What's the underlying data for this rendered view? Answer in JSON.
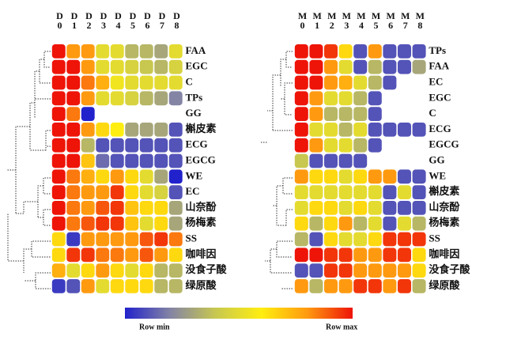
{
  "chart_data": [
    {
      "type": "heatmap",
      "categories": [
        "D0",
        "D1",
        "D2",
        "D3",
        "D4",
        "D5",
        "D6",
        "D7",
        "D8"
      ],
      "rows": [
        "FAA",
        "EGC",
        "C",
        "TPs",
        "GG",
        "槲皮素",
        "ECG",
        "EGCG",
        "WE",
        "EC",
        "山奈酚",
        "杨梅素",
        "SS",
        "咖啡因",
        "没食子酸",
        "绿原酸"
      ],
      "values": [
        [
          1,
          0.8,
          0.8,
          0.5,
          0.5,
          0.35,
          0.35,
          0.3,
          0.5
        ],
        [
          1,
          1,
          0.8,
          0.5,
          0.5,
          0.45,
          0.4,
          0.35,
          0.45
        ],
        [
          1,
          1,
          0.85,
          0.75,
          0.55,
          0.5,
          0.5,
          0.5,
          0.5
        ],
        [
          1,
          1,
          0.8,
          0.5,
          0.5,
          0.45,
          0.35,
          0.3,
          0.2
        ],
        [
          1,
          0.85,
          0,
          null,
          null,
          null,
          null,
          null,
          null
        ],
        [
          1,
          1,
          0.8,
          0.65,
          0.6,
          0.3,
          0.3,
          0.3,
          0.1
        ],
        [
          1,
          1,
          0.35,
          0.1,
          0.1,
          0.1,
          0.1,
          0.1,
          0.1
        ],
        [
          1,
          1,
          0.7,
          0.15,
          0.1,
          0.1,
          0.1,
          0.1,
          0.1
        ],
        [
          1,
          0.85,
          0.75,
          0.65,
          0.8,
          0.65,
          0.5,
          0.3,
          0
        ],
        [
          1,
          0.85,
          0.8,
          0.8,
          0.95,
          0.65,
          0.5,
          0.45,
          0.1
        ],
        [
          1,
          0.85,
          0.8,
          0.9,
          0.95,
          0.7,
          0.65,
          0.65,
          0.3
        ],
        [
          1,
          0.85,
          0.9,
          0.95,
          0.95,
          0.7,
          0.5,
          0.65,
          0.3
        ],
        [
          0.65,
          0.05,
          0.8,
          0.8,
          0.8,
          0.8,
          0.9,
          0.95,
          0.85
        ],
        [
          0.65,
          0.95,
          0.95,
          0.85,
          0.85,
          0.8,
          0.9,
          0.8,
          0.65
        ],
        [
          0.75,
          0.5,
          0.65,
          0.8,
          0.65,
          0.5,
          0.65,
          0.35,
          0.35
        ],
        [
          0.05,
          0.1,
          0.8,
          0.5,
          0.65,
          0.65,
          0.65,
          0.35,
          0.35
        ]
      ]
    },
    {
      "type": "heatmap",
      "categories": [
        "M0",
        "M1",
        "M2",
        "M3",
        "M4",
        "M5",
        "M6",
        "M7",
        "M8"
      ],
      "rows": [
        "TPs",
        "FAA",
        "EC",
        "EGC",
        "C",
        "ECG",
        "EGCG",
        "GG",
        "WE",
        "槲皮素",
        "山奈酚",
        "杨梅素",
        "SS",
        "咖啡因",
        "没食子酸",
        "绿原酸"
      ],
      "values": [
        [
          1,
          1,
          0.95,
          0.65,
          0.1,
          0.8,
          0.1,
          0.1,
          0.1
        ],
        [
          1,
          1,
          0.8,
          0.5,
          0.1,
          0.35,
          0.1,
          0.1,
          0.3
        ],
        [
          1,
          1,
          0.8,
          0.75,
          0.5,
          0.35,
          0.1,
          null,
          null
        ],
        [
          1,
          0.8,
          0.5,
          0.5,
          0.35,
          0.1,
          null,
          null,
          null
        ],
        [
          1,
          0.8,
          0.35,
          0.35,
          0.35,
          0.1,
          null,
          null,
          null
        ],
        [
          1,
          0.5,
          0.5,
          0.35,
          0.5,
          0.1,
          0.1,
          0.1,
          0.1
        ],
        [
          1,
          0.8,
          0.5,
          0.5,
          0.35,
          0.1,
          null,
          null,
          null
        ],
        [
          0.4,
          0.1,
          0.1,
          0.1,
          0.1,
          null,
          null,
          null,
          null
        ],
        [
          0.8,
          0.65,
          0.65,
          0.5,
          0.65,
          0.8,
          0.8,
          0.1,
          0.1
        ],
        [
          0.5,
          0.5,
          0.5,
          0.5,
          0.5,
          0.5,
          0.1,
          0.5,
          0.1
        ],
        [
          0.5,
          0.65,
          0.65,
          0.5,
          0.65,
          0.5,
          0.1,
          0.1,
          0.1
        ],
        [
          0.65,
          0.35,
          0.65,
          0.8,
          0.35,
          0.5,
          0.1,
          0.5,
          0.35
        ],
        [
          0.35,
          0.1,
          0.65,
          0.5,
          0.5,
          0.65,
          0.95,
          0.95,
          0.95
        ],
        [
          1,
          1,
          0.95,
          0.95,
          0.8,
          0.8,
          0.95,
          0.95,
          0.65
        ],
        [
          0.1,
          0.1,
          0.95,
          0.95,
          0.8,
          0.8,
          0.8,
          0.8,
          0.65
        ],
        [
          0.8,
          0.35,
          0.8,
          0.8,
          0.95,
          0.95,
          0.8,
          0.95,
          0.35
        ]
      ]
    }
  ],
  "colorbar": {
    "min_label": "Row min",
    "max_label": "Row max",
    "colors": [
      "#2222cc",
      "#8484a4",
      "#c8c850",
      "#ffee10",
      "#ff9a10",
      "#ee1408"
    ]
  }
}
